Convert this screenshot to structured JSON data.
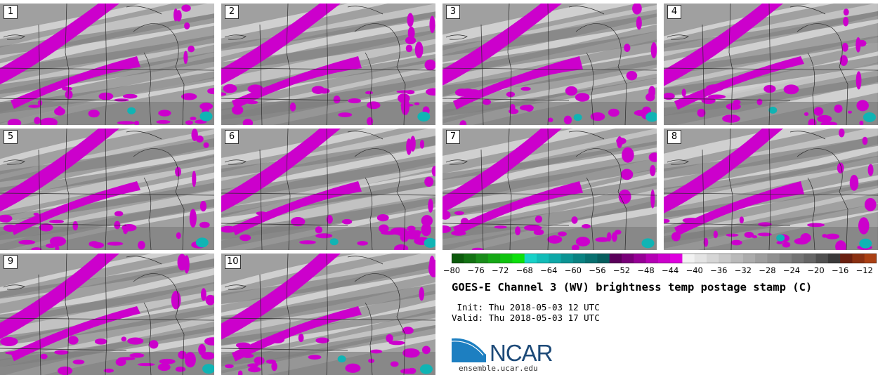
{
  "panels": [
    {
      "label": "1"
    },
    {
      "label": "2"
    },
    {
      "label": "3"
    },
    {
      "label": "4"
    },
    {
      "label": "5"
    },
    {
      "label": "6"
    },
    {
      "label": "7"
    },
    {
      "label": "8"
    },
    {
      "label": "9"
    },
    {
      "label": "10"
    }
  ],
  "colorbar": {
    "min": -80,
    "max": -10,
    "step": 2,
    "tick_labels": [
      "−80",
      "−76",
      "−72",
      "−68",
      "−64",
      "−60",
      "−56",
      "−52",
      "−48",
      "−44",
      "−40",
      "−36",
      "−32",
      "−28",
      "−24",
      "−20",
      "−16",
      "−12"
    ],
    "tick_values": [
      -80,
      -76,
      -72,
      -68,
      -64,
      -60,
      -56,
      -52,
      -48,
      -44,
      -40,
      -36,
      -32,
      -28,
      -24,
      -20,
      -16,
      -12
    ],
    "colors": [
      "#0c5a0c",
      "#137213",
      "#1a8c1a",
      "#16a816",
      "#10c410",
      "#0ce00c",
      "#18d2c8",
      "#12bcb8",
      "#0ea8a8",
      "#0c9494",
      "#0a8282",
      "#087070",
      "#075e5e",
      "#5a005a",
      "#780078",
      "#960096",
      "#b400b4",
      "#cc00cc",
      "#e000e0",
      "#f2f2f2",
      "#e4e4e4",
      "#d6d6d6",
      "#c8c8c8",
      "#bababa",
      "#acacac",
      "#9e9e9e",
      "#909090",
      "#828282",
      "#747474",
      "#666666",
      "#505050",
      "#3a3a3a",
      "#6a2010",
      "#8a3012",
      "#aa4014",
      "#cc5016",
      "#e86018",
      "#f07018",
      "#e05010",
      "#d03a08"
    ]
  },
  "title": "GOES-E Channel 3 (WV) brightness temp postage stamp (C)",
  "init": " Init: Thu 2018-05-03 12 UTC",
  "valid": "Valid: Thu 2018-05-03 17 UTC",
  "logo": {
    "text": "NCAR",
    "url": "ensemble.ucar.edu"
  },
  "palette": {
    "magenta": "#cc00cc",
    "teal": "#10b4b4",
    "light": "#c8c8c8",
    "dark": "#7a7a7a"
  }
}
